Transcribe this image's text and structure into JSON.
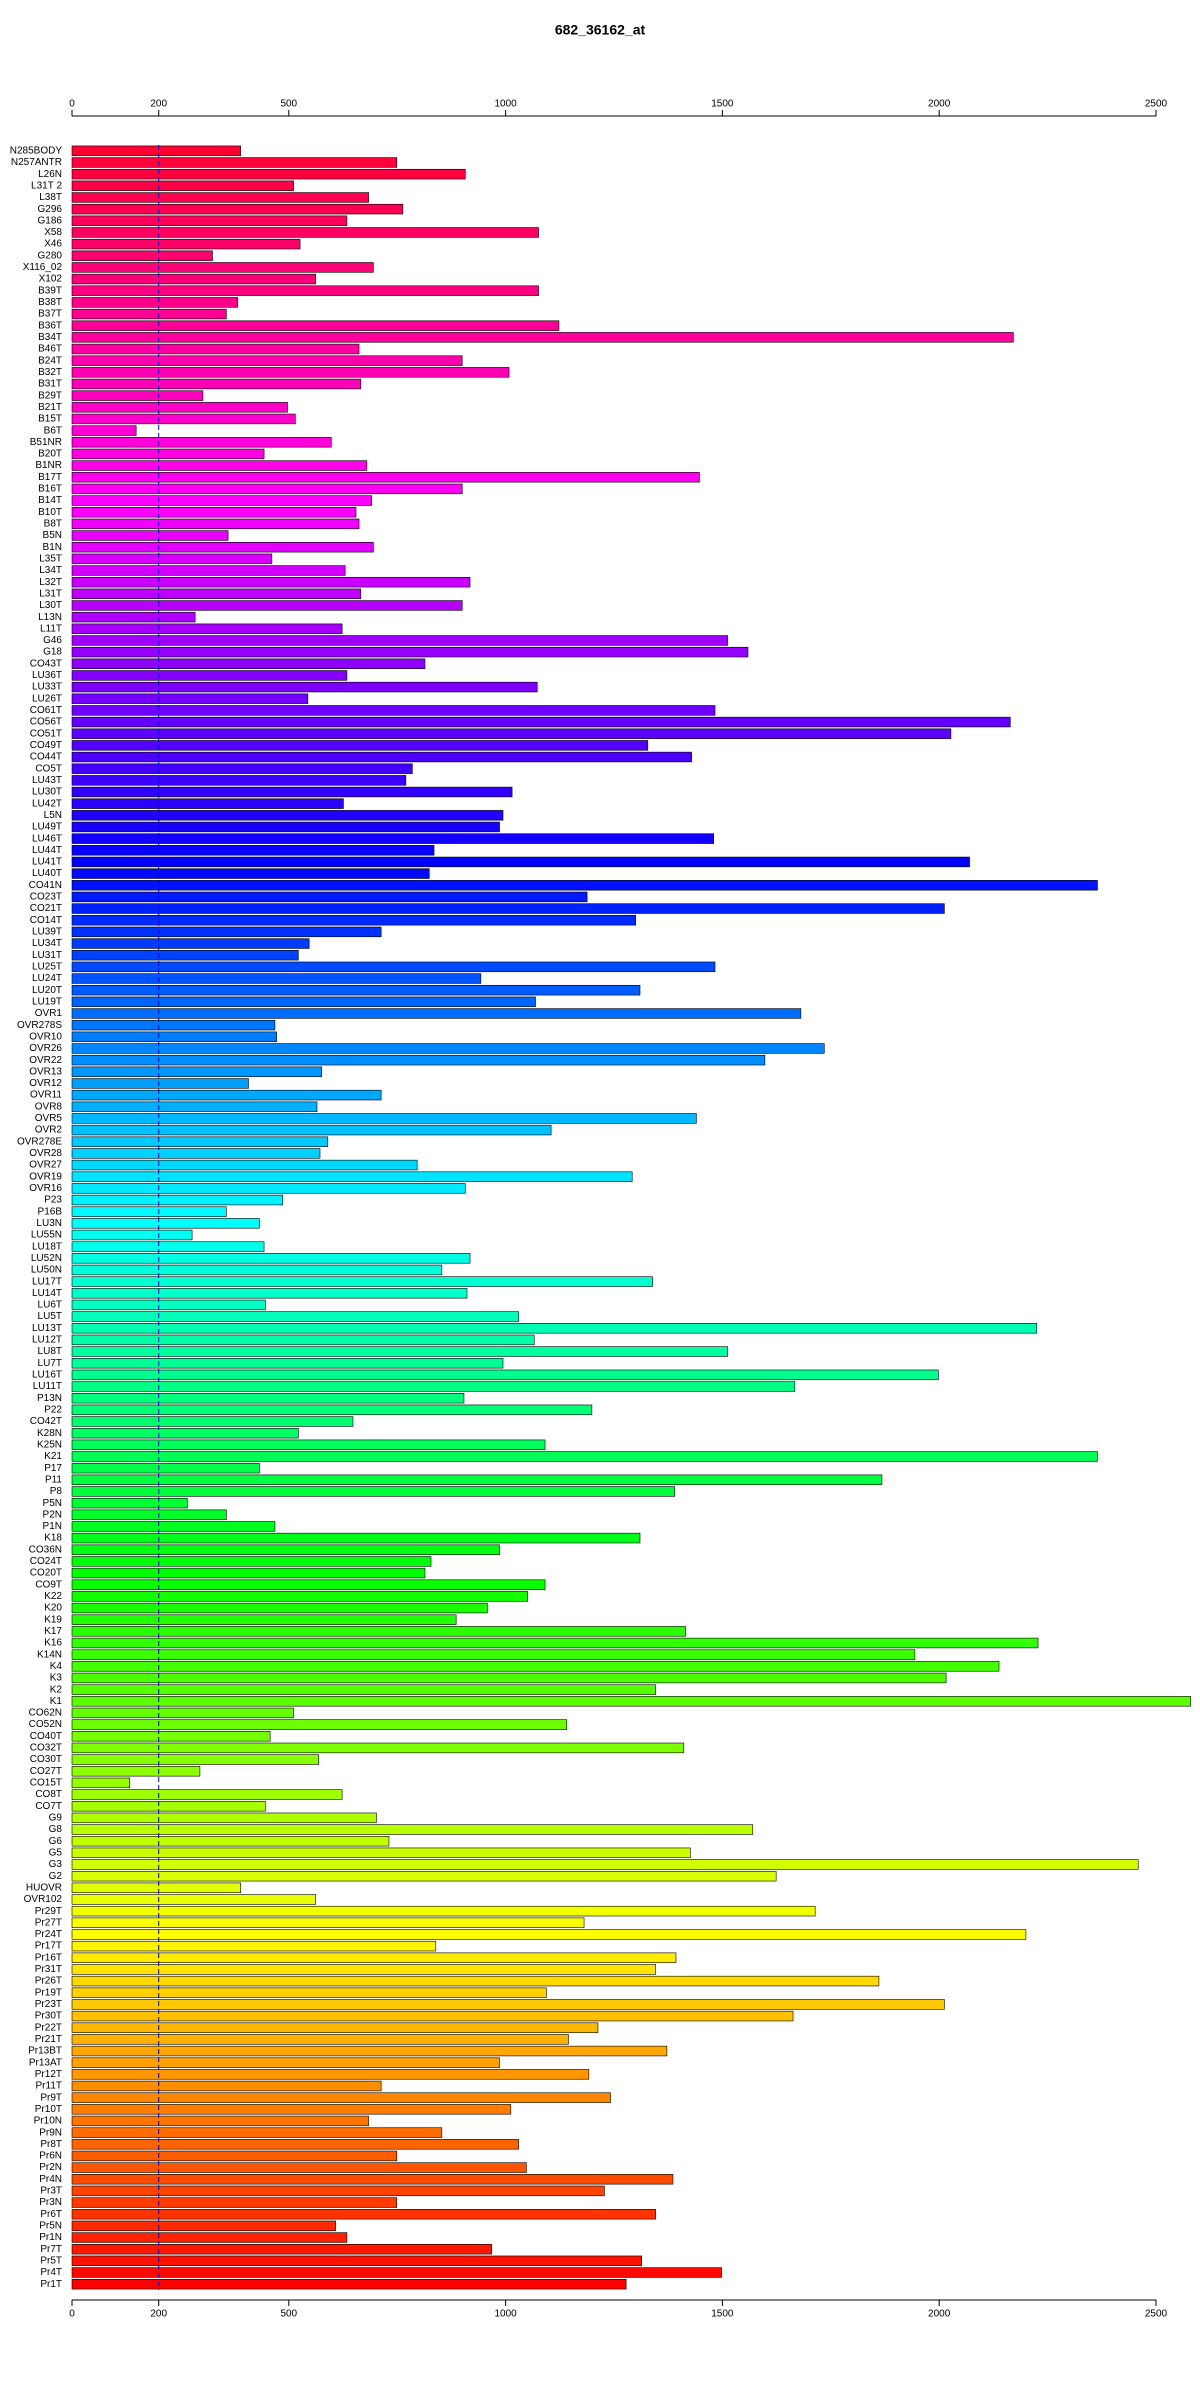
{
  "chart_data": {
    "type": "barh",
    "title": "682_36162_at",
    "categories": [
      "N285BODY",
      "N257ANTR",
      "L26N",
      "L31T 2",
      "L38T",
      "G296",
      "G186",
      "X58",
      "X46",
      "G280",
      "X116_02",
      "X102",
      "B39T",
      "B38T",
      "B37T",
      "B36T",
      "B34T",
      "B46T",
      "B24T",
      "B32T",
      "B31T",
      "B29T",
      "B21T",
      "B15T",
      "B6T",
      "B51NR",
      "B20T",
      "B1NR",
      "B17T",
      "B16T",
      "B14T",
      "B10T",
      "B8T",
      "B5N",
      "B1N",
      "L35T",
      "L34T",
      "L32T",
      "L31T",
      "L30T",
      "L13N",
      "L11T",
      "G46",
      "G18",
      "CO43T",
      "LU36T",
      "LU33T",
      "LU26T",
      "CO61T",
      "CO56T",
      "CO51T",
      "CO49T",
      "CO44T",
      "CO5T",
      "LU43T",
      "LU30T",
      "LU42T",
      "L5N",
      "LU49T",
      "LU46T",
      "LU44T",
      "LU41T",
      "LU40T",
      "CO41N",
      "CO23T",
      "CO21T",
      "CO14T",
      "LU39T",
      "LU34T",
      "LU31T",
      "LU25T",
      "LU24T",
      "LU20T",
      "LU19T",
      "OVR1",
      "OVR278S",
      "OVR10",
      "OVR26",
      "OVR22",
      "OVR13",
      "OVR12",
      "OVR11",
      "OVR8",
      "OVR5",
      "OVR2",
      "OVR278E",
      "OVR28",
      "OVR27",
      "OVR19",
      "OVR16",
      "P23",
      "P16B",
      "LU3N",
      "LU55N",
      "LU18T",
      "LU52N",
      "LU50N",
      "LU17T",
      "LU14T",
      "LU6T",
      "LU5T",
      "LU13T",
      "LU12T",
      "LU8T",
      "LU7T",
      "LU16T",
      "LU11T",
      "P13N",
      "P22",
      "CO42T",
      "K28N",
      "K25N",
      "K21",
      "P17",
      "P11",
      "P8",
      "P5N",
      "P2N",
      "P1N",
      "K18",
      "CO36N",
      "CO24T",
      "CO20T",
      "CO9T",
      "K22",
      "K20",
      "K19",
      "K17",
      "K16",
      "K14N",
      "K4",
      "K3",
      "K2",
      "K1",
      "CO62N",
      "CO52N",
      "CO40T",
      "CO32T",
      "CO30T",
      "CO27T",
      "CO15T",
      "CO8T",
      "CO7T",
      "G9",
      "G8",
      "G6",
      "G5",
      "G3",
      "G2",
      "HUOVR",
      "OVR102",
      "Pr29T",
      "Pr27T",
      "Pr24T",
      "Pr17T",
      "Pr16T",
      "Pr31T",
      "Pr26T",
      "Pr19T",
      "Pr23T",
      "Pr30T",
      "Pr22T",
      "Pr21T",
      "Pr13BT",
      "Pr13AT",
      "Pr12T",
      "Pr11T",
      "Pr9T",
      "Pr10T",
      "Pr10N",
      "Pr9N",
      "Pr8T",
      "Pr6N",
      "Pr2N",
      "Pr4N",
      "Pr3T",
      "Pr3N",
      "Pr6T",
      "Pr5N",
      "Pr1N",
      "Pr7T",
      "Pr5T",
      "Pr4T",
      "Pr1T"
    ],
    "values": [
      389,
      749,
      907,
      511,
      684,
      763,
      634,
      1076,
      526,
      324,
      695,
      562,
      1076,
      382,
      356,
      1123,
      2171,
      662,
      900,
      1008,
      666,
      302,
      497,
      515,
      148,
      598,
      443,
      680,
      1447,
      900,
      691,
      655,
      662,
      360,
      695,
      461,
      630,
      918,
      666,
      900,
      284,
      623,
      1512,
      1559,
      814,
      634,
      1073,
      544,
      1483,
      2164,
      2027,
      1328,
      1429,
      785,
      770,
      1015,
      626,
      994,
      986,
      1480,
      835,
      2070,
      824,
      2365,
      1188,
      2012,
      1300,
      713,
      547,
      522,
      1483,
      943,
      1310,
      1069,
      1681,
      468,
      472,
      1735,
      1598,
      576,
      407,
      713,
      565,
      1440,
      1105,
      590,
      572,
      796,
      1292,
      907,
      486,
      356,
      432,
      277,
      443,
      918,
      853,
      1339,
      911,
      446,
      1030,
      2225,
      1066,
      1512,
      994,
      1998,
      1667,
      904,
      1199,
      648,
      522,
      1091,
      2365,
      432,
      1868,
      1390,
      266,
      356,
      468,
      1310,
      986,
      828,
      814,
      1091,
      1051,
      958,
      886,
      1415,
      2228,
      1944,
      2138,
      2016,
      1346,
      2580,
      511,
      1141,
      457,
      1411,
      569,
      295,
      133,
      623,
      446,
      702,
      1570,
      731,
      1426,
      2459,
      1624,
      389,
      562,
      1714,
      1181,
      2200,
      839,
      1393,
      1346,
      1861,
      1094,
      2012,
      1663,
      1213,
      1145,
      1372,
      986,
      1192,
      713,
      1242,
      1012,
      684,
      853,
      1030,
      749,
      1048,
      1386,
      1228,
      749,
      1346,
      608,
      634,
      968,
      1314,
      1498,
      1278
    ],
    "color_stops": [
      "#ff0033",
      "#ff00ff",
      "#0000ff",
      "#00ffff",
      "#00ff00",
      "#ffff00",
      "#ff0000"
    ],
    "xlim": [
      0,
      2590
    ],
    "xticks": [
      0,
      200,
      500,
      1000,
      1500,
      2000,
      2500
    ],
    "ref_line": 200,
    "ref_line_color": "#0000cc"
  }
}
